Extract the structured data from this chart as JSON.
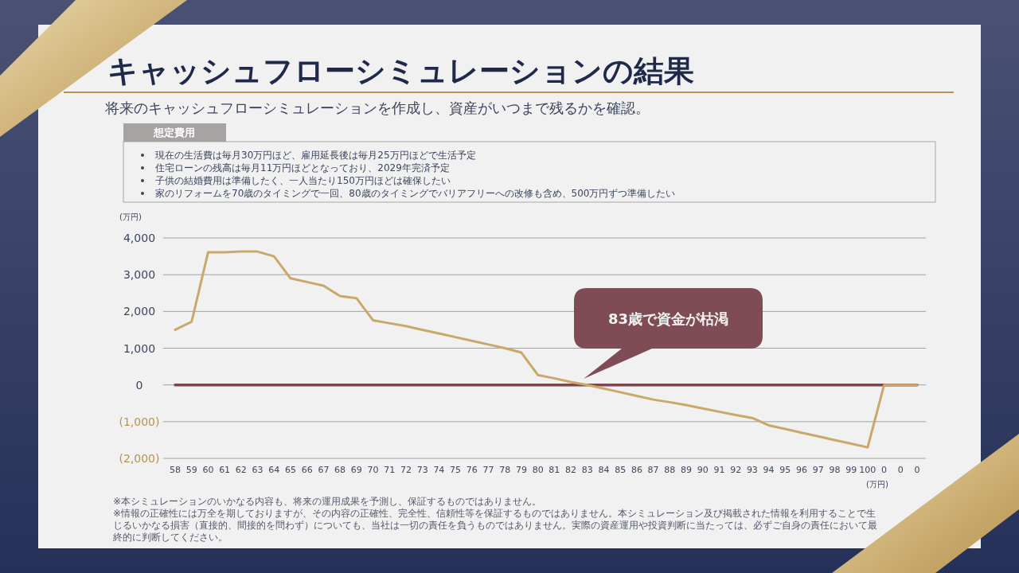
{
  "chart_data": {
    "type": "line",
    "title": "キャッシュフローシミュレーションの結果",
    "subtitle": "将来のキャッシュフローシミュレーションを作成し、資産がいつまで残るかを確認。",
    "ylabel": "(万円)",
    "xlabel": "(万円)",
    "categories": [
      "58",
      "59",
      "60",
      "61",
      "62",
      "63",
      "64",
      "65",
      "66",
      "67",
      "68",
      "69",
      "70",
      "71",
      "72",
      "73",
      "74",
      "75",
      "76",
      "77",
      "78",
      "79",
      "80",
      "81",
      "82",
      "83",
      "84",
      "85",
      "86",
      "87",
      "88",
      "89",
      "90",
      "91",
      "92",
      "93",
      "94",
      "95",
      "96",
      "97",
      "98",
      "99",
      "100",
      "0",
      "0",
      "0"
    ],
    "series": [
      {
        "color": "#c9a86a",
        "values": [
          1500,
          1720,
          3610,
          3610,
          3630,
          3630,
          3500,
          2900,
          2800,
          2700,
          2420,
          2360,
          1760,
          1680,
          1600,
          1500,
          1400,
          1300,
          1200,
          1100,
          1000,
          880,
          270,
          180,
          80,
          0,
          -100,
          -200,
          -300,
          -400,
          -470,
          -550,
          -640,
          -730,
          -820,
          -900,
          -1100,
          -1200,
          -1300,
          -1400,
          -1500,
          -1600,
          -1700,
          0,
          0,
          0
        ]
      },
      {
        "color": "#7b4650",
        "values": [
          0,
          0,
          0,
          0,
          0,
          0,
          0,
          0,
          0,
          0,
          0,
          0,
          0,
          0,
          0,
          0,
          0,
          0,
          0,
          0,
          0,
          0,
          0,
          0,
          0,
          0,
          0,
          0,
          0,
          0,
          0,
          0,
          0,
          0,
          0,
          0,
          0,
          0,
          0,
          0,
          0,
          0,
          0,
          0,
          0,
          0
        ]
      }
    ],
    "ylim": [
      -2000,
      4000
    ],
    "yticks": [
      {
        "value": -2000,
        "label": "(2,000)"
      },
      {
        "value": -1000,
        "label": "(1,000)"
      },
      {
        "value": 0,
        "label": "0"
      },
      {
        "value": 1000,
        "label": "1,000"
      },
      {
        "value": 2000,
        "label": "2,000"
      },
      {
        "value": 3000,
        "label": "3,000"
      },
      {
        "value": 4000,
        "label": "4,000"
      }
    ],
    "grid": "y",
    "annotations": [
      "83歳で資金が枯渇",
      "想定費用",
      "現在の生活費は毎月30万円ほど、雇用延長後は毎月25万円ほどで生活予定",
      "住宅ローンの残高は毎月11万円ほどとなっており、2029年完済予定",
      "子供の結婚費用は準備したく、一人当たり150万円ほどは確保したい",
      "家のリフォームを70歳のタイミングで一回、80歳のタイミングでバリアフリーへの改修も含め、500万円ずつ準備したい",
      "※本シミュレーションのいかなる内容も、将来の運用成果を予測し、保証するものではありません。",
      "※情報の正確性には万全を期しておりますが、その内容の正確性、完全性、信頼性等を保証するものではありません。本シミュレーション及び掲載された情報を利用することで生じるいかなる損害（直接的、間接的を問わず）についても、当社は一切の責任を負うものではありません。実際の資産運用や投資判断に当たっては、必ずご自身の責任において最終的に判断してください。"
    ]
  }
}
